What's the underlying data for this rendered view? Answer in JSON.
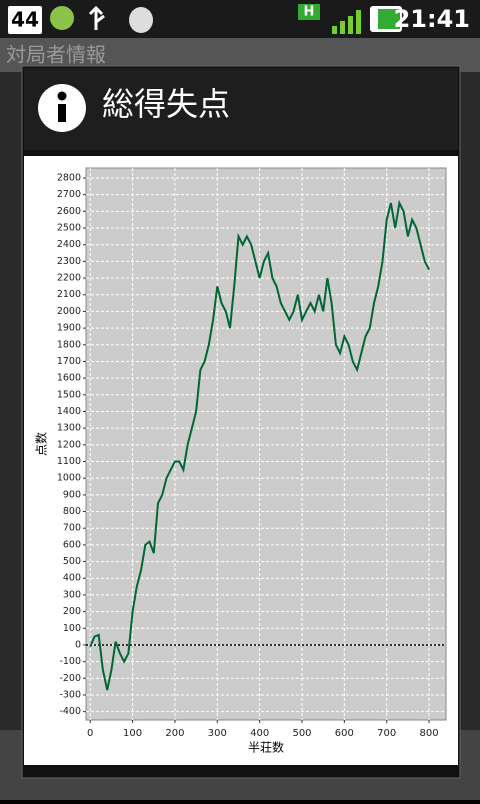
{
  "status_bar": {
    "badge": "44",
    "network": "H",
    "time": "21:41"
  },
  "app_title": "対局者情報",
  "dialog": {
    "title": "総得失点"
  },
  "chart_data": {
    "type": "line",
    "xlabel": "半荘数",
    "ylabel": "点数",
    "x": [
      0,
      10,
      20,
      30,
      40,
      50,
      60,
      70,
      80,
      90,
      100,
      110,
      120,
      130,
      140,
      150,
      160,
      170,
      180,
      190,
      200,
      210,
      220,
      230,
      240,
      250,
      260,
      270,
      280,
      290,
      300,
      310,
      320,
      330,
      340,
      350,
      360,
      370,
      380,
      390,
      400,
      410,
      420,
      430,
      440,
      450,
      460,
      470,
      480,
      490,
      500,
      510,
      520,
      530,
      540,
      550,
      560,
      570,
      580,
      590,
      600,
      610,
      620,
      630,
      640,
      650,
      660,
      670,
      680,
      690,
      700,
      710,
      720,
      730,
      740,
      750,
      760,
      770,
      780,
      790,
      800
    ],
    "series": [
      {
        "name": "総得失点",
        "color": "#006633",
        "values": [
          -10,
          50,
          60,
          -150,
          -270,
          -150,
          20,
          -50,
          -100,
          -50,
          200,
          350,
          450,
          600,
          620,
          550,
          850,
          900,
          1000,
          1050,
          1100,
          1100,
          1050,
          1200,
          1300,
          1400,
          1650,
          1700,
          1800,
          1950,
          2150,
          2050,
          2000,
          1900,
          2150,
          2450,
          2400,
          2450,
          2400,
          2300,
          2200,
          2300,
          2350,
          2200,
          2150,
          2050,
          2000,
          1950,
          2000,
          2100,
          1950,
          2000,
          2050,
          2000,
          2100,
          2000,
          2200,
          2050,
          1800,
          1750,
          1850,
          1800,
          1700,
          1650,
          1750,
          1850,
          1900,
          2050,
          2150,
          2300,
          2550,
          2650,
          2500,
          2650,
          2600,
          2450,
          2550,
          2500,
          2400,
          2300,
          2250
        ]
      }
    ],
    "xlim": [
      -10,
      840
    ],
    "ylim": [
      -450,
      2860
    ],
    "xticks": [
      0,
      100,
      200,
      300,
      400,
      500,
      600,
      700,
      800
    ],
    "yticks": [
      -400,
      -300,
      -200,
      -100,
      0,
      100,
      200,
      300,
      400,
      500,
      600,
      700,
      800,
      900,
      1000,
      1100,
      1200,
      1300,
      1400,
      1500,
      1600,
      1700,
      1800,
      1900,
      2000,
      2100,
      2200,
      2300,
      2400,
      2500,
      2600,
      2700,
      2800
    ],
    "grid": true,
    "zero_line": true
  }
}
